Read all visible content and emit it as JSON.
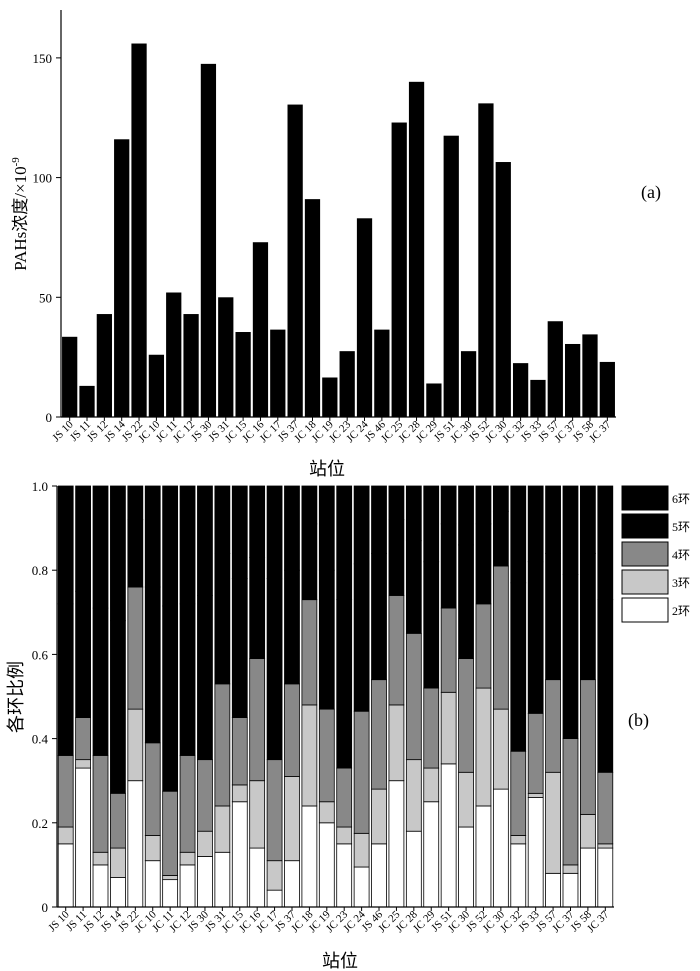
{
  "chart_data": [
    {
      "type": "bar",
      "panel_label": "(a)",
      "ylabel": "PAHs浓度/×10",
      "ylabel_exponent": "-9",
      "xlabel": "站位",
      "ylim": [
        0,
        170
      ],
      "yticks": [
        0,
        50,
        100,
        150
      ],
      "categories": [
        "JS 10",
        "JS 11",
        "JS 12",
        "JS 14",
        "JS 22",
        "JC 10",
        "JC 11",
        "JC 12",
        "JS 30",
        "JS 31",
        "JC 15",
        "JC 16",
        "JC 17",
        "JS 37",
        "JC 18",
        "JC 19",
        "JC 23",
        "JC 24",
        "JS 46",
        "JC 25",
        "JC 28",
        "JC 29",
        "JS 51",
        "JC 30",
        "JS 52",
        "JC 30",
        "JC 32",
        "JS 33",
        "JS 57",
        "JC 37",
        "JS 58",
        "JC 37"
      ],
      "values": [
        33.5,
        13,
        43,
        116,
        156,
        26,
        52,
        43,
        147.5,
        50,
        35.5,
        73,
        36.5,
        130.5,
        91,
        16.5,
        27.5,
        83,
        36.5,
        123,
        140,
        14,
        117.5,
        27.5,
        131,
        106.5,
        22.5,
        15.5,
        40,
        30.5,
        34.5,
        23
      ],
      "bar_color": "#000000"
    },
    {
      "type": "bar",
      "stacked": true,
      "panel_label": "(b)",
      "ylabel": "各环比例",
      "xlabel": "站位",
      "ylim": [
        0,
        1.0
      ],
      "yticks": [
        "0",
        "0.2",
        "0.4",
        "0.6",
        "0.8",
        "1.0"
      ],
      "legend_position": "right",
      "categories": [
        "JS 10",
        "JS 11",
        "JS 12",
        "JS 14",
        "JS 22",
        "JC 10",
        "JC 11",
        "JC 12",
        "JS 30",
        "JS 31",
        "JC 15",
        "JC 16",
        "JC 17",
        "JS 37",
        "JC 18",
        "JC 19",
        "JC 23",
        "JC 24",
        "JS 46",
        "JC 25",
        "JC 28",
        "JC 29",
        "JS 51",
        "JC 30",
        "JS 52",
        "JC 30",
        "JC 32",
        "JS 33",
        "JS 57",
        "JC 37",
        "JS 58",
        "JC 37"
      ],
      "series": [
        {
          "name": "2环",
          "color": "#ffffff",
          "values": [
            0.15,
            0.33,
            0.1,
            0.07,
            0.3,
            0.11,
            0.065,
            0.1,
            0.12,
            0.13,
            0.25,
            0.14,
            0.04,
            0.11,
            0.24,
            0.2,
            0.15,
            0.095,
            0.15,
            0.3,
            0.18,
            0.25,
            0.34,
            0.19,
            0.24,
            0.28,
            0.15,
            0.26,
            0.08,
            0.08,
            0.14,
            0.14
          ]
        },
        {
          "name": "3环",
          "color": "#c8c8c8",
          "values": [
            0.04,
            0.02,
            0.03,
            0.07,
            0.17,
            0.06,
            0.01,
            0.03,
            0.06,
            0.11,
            0.04,
            0.16,
            0.07,
            0.2,
            0.24,
            0.05,
            0.04,
            0.08,
            0.13,
            0.18,
            0.17,
            0.08,
            0.17,
            0.13,
            0.28,
            0.19,
            0.02,
            0.01,
            0.24,
            0.02,
            0.08,
            0.01
          ]
        },
        {
          "name": "4环",
          "color": "#888888",
          "values": [
            0.17,
            0.1,
            0.23,
            0.13,
            0.29,
            0.22,
            0.2,
            0.23,
            0.17,
            0.29,
            0.16,
            0.29,
            0.24,
            0.22,
            0.25,
            0.22,
            0.14,
            0.29,
            0.26,
            0.26,
            0.3,
            0.19,
            0.2,
            0.27,
            0.2,
            0.34,
            0.2,
            0.19,
            0.22,
            0.3,
            0.32,
            0.17
          ]
        },
        {
          "name": "5环",
          "color": "#000000",
          "values": [
            0.36,
            0.3,
            0.35,
            0.41,
            0.16,
            0.37,
            0.44,
            0.36,
            0.39,
            0.31,
            0.33,
            0.24,
            0.43,
            0.27,
            0.18,
            0.33,
            0.4,
            0.35,
            0.3,
            0.18,
            0.22,
            0.3,
            0.2,
            0.27,
            0.19,
            0.13,
            0.4,
            0.36,
            0.3,
            0.39,
            0.3,
            0.41
          ]
        },
        {
          "name": "6环",
          "color": "#000000",
          "values": [
            0.28,
            0.25,
            0.29,
            0.32,
            0.08,
            0.24,
            0.285,
            0.28,
            0.26,
            0.16,
            0.22,
            0.17,
            0.22,
            0.2,
            0.09,
            0.2,
            0.27,
            0.185,
            0.16,
            0.08,
            0.13,
            0.18,
            0.09,
            0.14,
            0.09,
            0.06,
            0.23,
            0.18,
            0.16,
            0.21,
            0.16,
            0.27
          ]
        }
      ]
    }
  ]
}
